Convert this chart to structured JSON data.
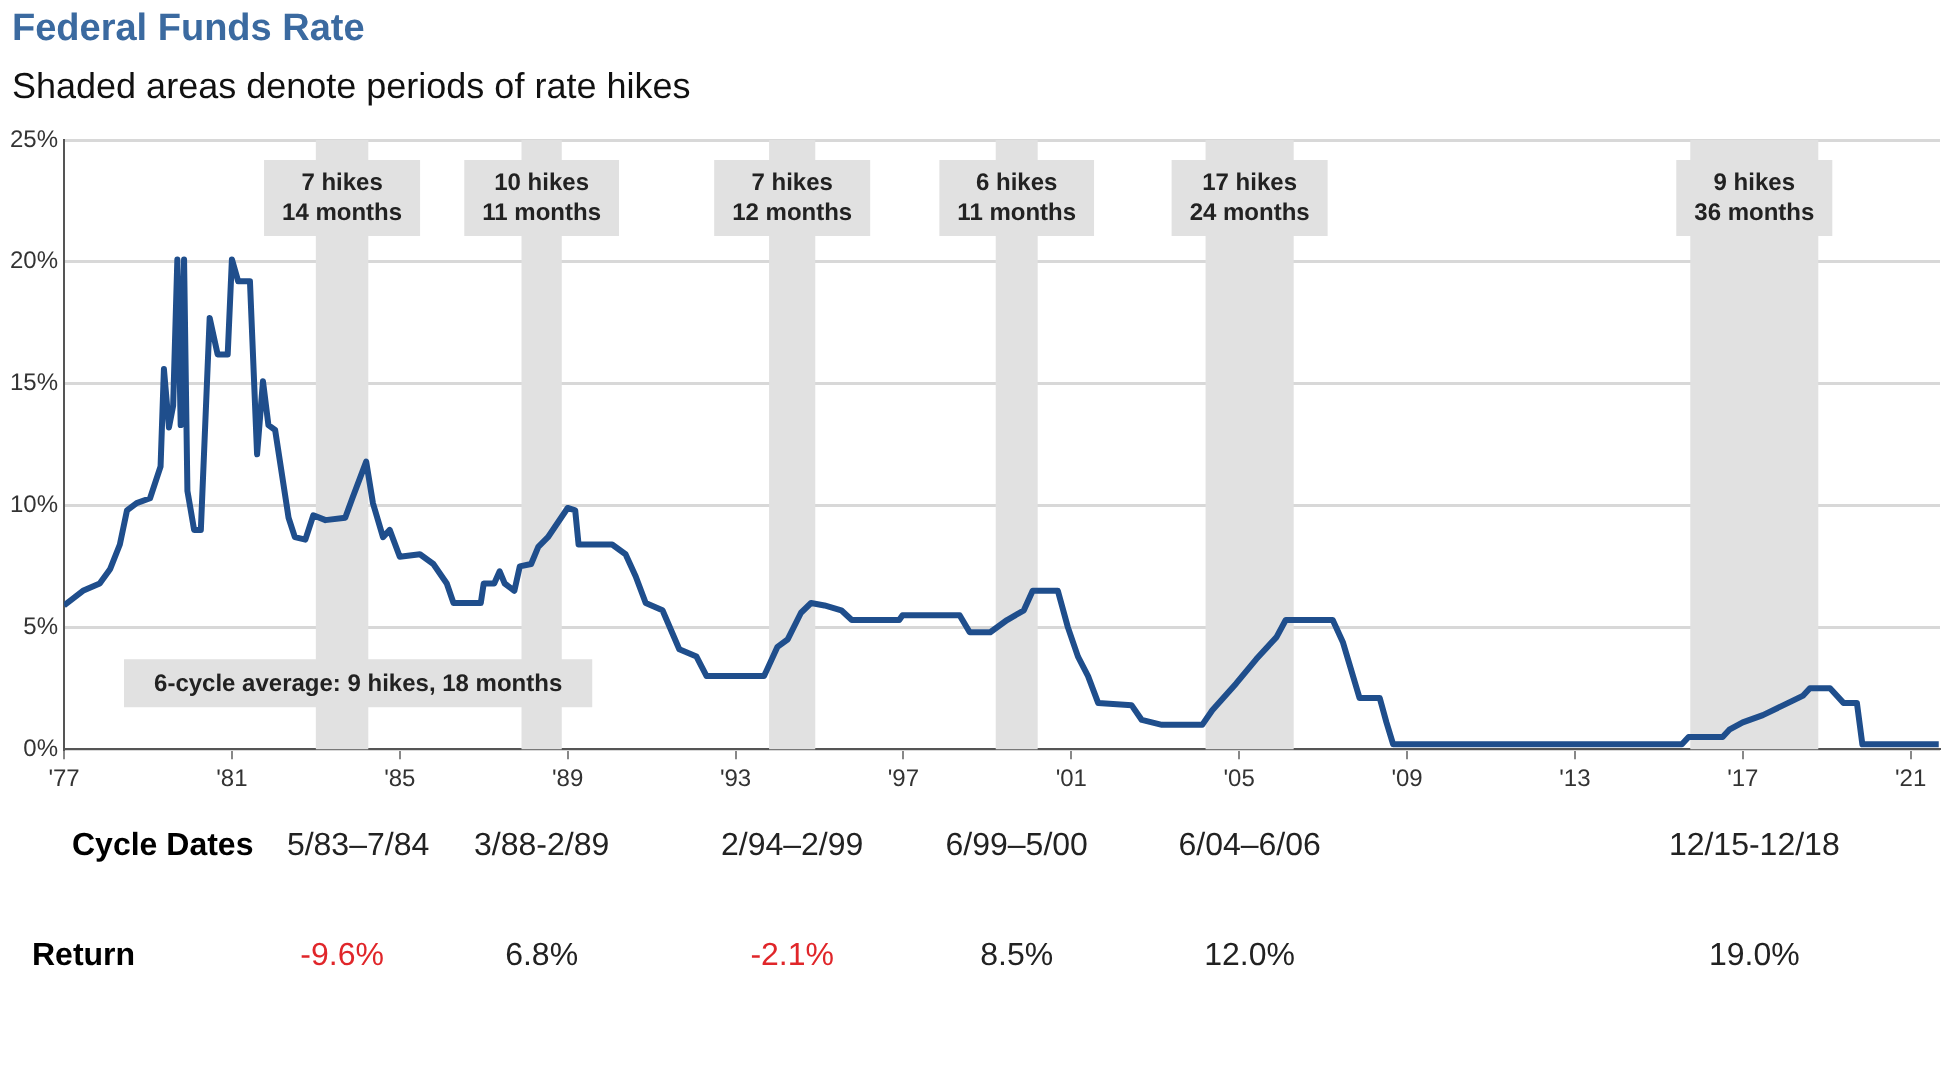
{
  "chart_data": {
    "type": "line",
    "title": "Federal Funds Rate",
    "subtitle": "Shaded areas denote periods of rate hikes",
    "x": [
      1977.0,
      1977.45,
      1977.85,
      1978.1,
      1978.33,
      1978.5,
      1978.73,
      1979.05,
      1979.3,
      1979.38,
      1979.5,
      1979.6,
      1979.7,
      1979.78,
      1979.86,
      1979.94,
      1980.1,
      1980.26,
      1980.47,
      1980.66,
      1980.9,
      1981.0,
      1981.15,
      1981.43,
      1981.6,
      1981.74,
      1981.87,
      1982.03,
      1982.35,
      1982.5,
      1982.75,
      1982.94,
      1983.23,
      1983.7,
      1983.87,
      1984.2,
      1984.36,
      1984.6,
      1984.76,
      1985.0,
      1985.48,
      1985.8,
      1986.12,
      1986.28,
      1986.93,
      1987.0,
      1987.25,
      1987.38,
      1987.5,
      1987.73,
      1987.86,
      1988.13,
      1988.3,
      1988.53,
      1989.0,
      1989.18,
      1989.26,
      1990.06,
      1990.38,
      1990.62,
      1990.86,
      1991.26,
      1991.66,
      1992.07,
      1992.31,
      1993.68,
      1994.0,
      1994.24,
      1994.56,
      1994.8,
      1995.12,
      1995.52,
      1995.77,
      1996.9,
      1996.98,
      1998.34,
      1998.58,
      1999.07,
      1999.47,
      1999.87,
      2000.08,
      2000.68,
      2000.92,
      2001.16,
      2001.4,
      2001.64,
      2002.44,
      2002.68,
      2003.16,
      2004.12,
      2004.36,
      2004.93,
      2005.41,
      2005.89,
      2006.11,
      2007.23,
      2007.47,
      2007.87,
      2008.35,
      2008.51,
      2008.67,
      2015.55,
      2015.71,
      2016.52,
      2016.68,
      2017.0,
      2017.48,
      2017.96,
      2018.44,
      2018.6,
      2019.08,
      2019.4,
      2019.72,
      2019.85,
      2021.67
    ],
    "series": [
      {
        "color": "#1f4e8c",
        "values": [
          5.9,
          6.5,
          6.8,
          7.4,
          8.4,
          9.8,
          10.1,
          10.3,
          11.6,
          15.6,
          13.2,
          14.1,
          20.1,
          13.3,
          20.1,
          10.6,
          9.0,
          9.0,
          17.7,
          16.2,
          16.2,
          20.1,
          19.2,
          19.2,
          12.1,
          15.1,
          13.3,
          13.1,
          9.5,
          8.7,
          8.6,
          9.6,
          9.4,
          9.5,
          10.3,
          11.8,
          10.1,
          8.7,
          9.0,
          7.9,
          8.0,
          7.6,
          6.8,
          6.0,
          6.0,
          6.8,
          6.8,
          7.3,
          6.8,
          6.5,
          7.5,
          7.6,
          8.3,
          8.7,
          9.9,
          9.8,
          8.4,
          8.4,
          8.0,
          7.1,
          6.0,
          5.7,
          4.1,
          3.8,
          3.0,
          3.0,
          4.2,
          4.5,
          5.6,
          6.0,
          5.9,
          5.7,
          5.3,
          5.3,
          5.5,
          5.5,
          4.8,
          4.8,
          5.3,
          5.7,
          6.5,
          6.5,
          5.0,
          3.8,
          3.0,
          1.9,
          1.8,
          1.2,
          1.0,
          1.0,
          1.6,
          2.7,
          3.7,
          4.6,
          5.3,
          5.3,
          4.4,
          2.1,
          2.1,
          1.1,
          0.2,
          0.2,
          0.5,
          0.5,
          0.8,
          1.1,
          1.4,
          1.8,
          2.2,
          2.5,
          2.5,
          1.9,
          1.9,
          0.2,
          0.2
        ]
      }
    ],
    "xlim": [
      1977,
      2021.7
    ],
    "xticks": [
      {
        "value": 1977,
        "label": "'77"
      },
      {
        "value": 1981,
        "label": "'81"
      },
      {
        "value": 1985,
        "label": "'85"
      },
      {
        "value": 1989,
        "label": "'89"
      },
      {
        "value": 1993,
        "label": "'93"
      },
      {
        "value": 1997,
        "label": "'97"
      },
      {
        "value": 2001,
        "label": "'01"
      },
      {
        "value": 2005,
        "label": "'05"
      },
      {
        "value": 2009,
        "label": "'09"
      },
      {
        "value": 2013,
        "label": "'13"
      },
      {
        "value": 2017,
        "label": "'17"
      },
      {
        "value": 2021,
        "label": "'21"
      }
    ],
    "ylim": [
      0,
      25
    ],
    "yticks": [
      {
        "value": 0,
        "label": "0%"
      },
      {
        "value": 5,
        "label": "5%"
      },
      {
        "value": 10,
        "label": "10%"
      },
      {
        "value": 15,
        "label": "15%"
      },
      {
        "value": 20,
        "label": "20%"
      },
      {
        "value": 25,
        "label": "25%"
      }
    ],
    "grid": "y",
    "legend": false,
    "bands": [
      {
        "axis": "x",
        "from": 1983.0,
        "to": 1984.25,
        "label": "7 hikes\n14 months",
        "color": "#e1e1e1"
      },
      {
        "axis": "x",
        "from": 1987.9,
        "to": 1988.86,
        "label": "10 hikes\n11 months",
        "color": "#e1e1e1"
      },
      {
        "axis": "x",
        "from": 1993.8,
        "to": 1994.9,
        "label": "7 hikes\n12 months",
        "color": "#e1e1e1"
      },
      {
        "axis": "x",
        "from": 1999.2,
        "to": 2000.2,
        "label": "6 hikes\n11 months",
        "color": "#e1e1e1"
      },
      {
        "axis": "x",
        "from": 2004.2,
        "to": 2006.3,
        "label": "17 hikes\n24 months",
        "color": "#e1e1e1"
      },
      {
        "axis": "x",
        "from": 2015.75,
        "to": 2018.8,
        "label": "9 hikes\n36 months",
        "color": "#e1e1e1"
      }
    ],
    "annotations": [
      "6-cycle average: 9 hikes, 18 months",
      "Cycle Dates",
      "5/83–7/84",
      "3/88-2/89",
      "2/94–2/99",
      "6/99–5/00",
      "6/04–6/06",
      "12/15-12/18",
      "Return",
      "-9.6%",
      "6.8%",
      "-2.1%",
      "8.5%",
      "12.0%",
      "19.0%"
    ]
  }
}
